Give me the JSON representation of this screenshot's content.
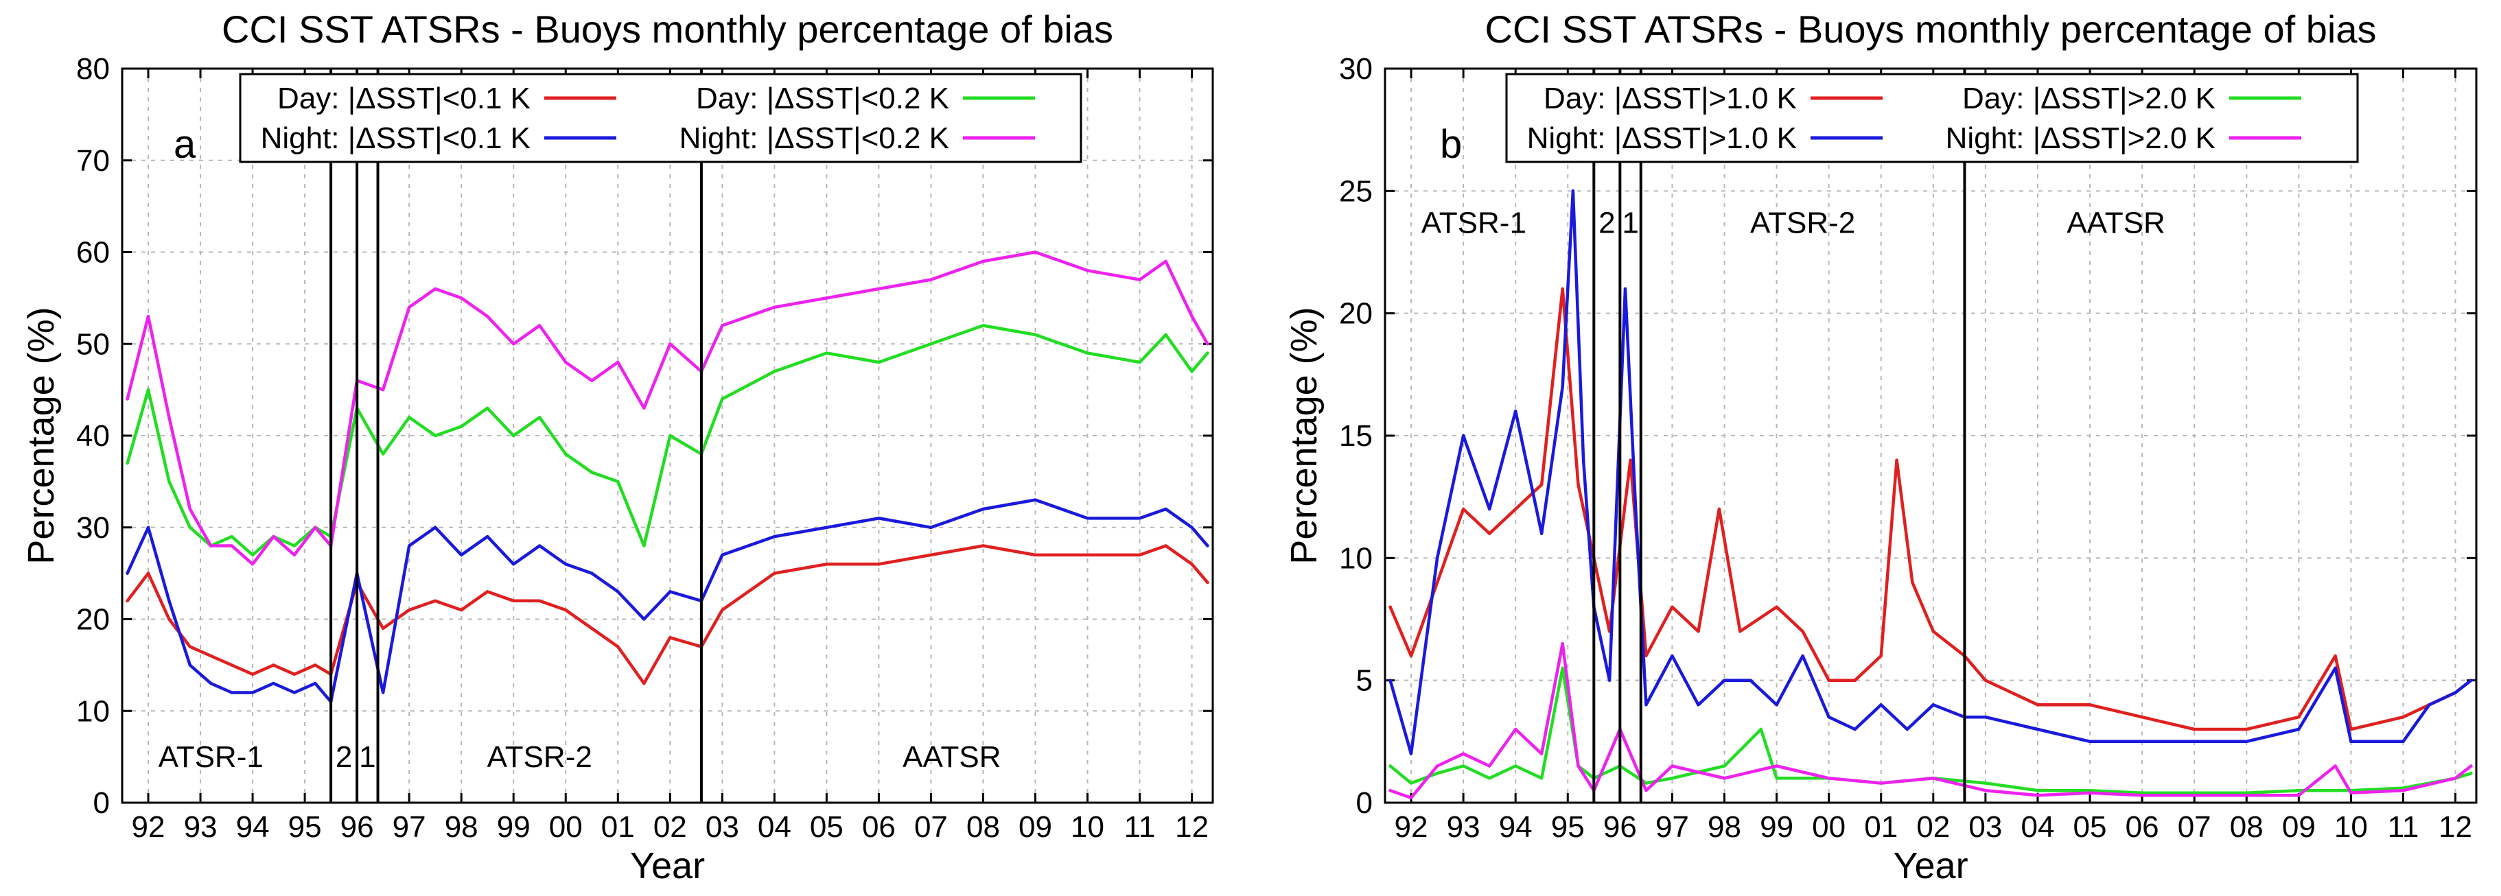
{
  "chart_data": [
    {
      "type": "line",
      "panel_letter": "a",
      "title": "CCI SST ATSRs - Buoys monthly percentage of bias",
      "xlabel": "Year",
      "ylabel": "Percentage (%)",
      "xlim": [
        1991.5,
        2012.4
      ],
      "ylim": [
        0,
        80
      ],
      "yticks": [
        0,
        10,
        20,
        30,
        40,
        50,
        60,
        70,
        80
      ],
      "xtick_positions": [
        1992,
        1993,
        1994,
        1995,
        1996,
        1997,
        1998,
        1999,
        2000,
        2001,
        2002,
        2003,
        2004,
        2005,
        2006,
        2007,
        2008,
        2009,
        2010,
        2011,
        2012
      ],
      "xtick_labels": [
        "92",
        "93",
        "94",
        "95",
        "96",
        "97",
        "98",
        "99",
        "00",
        "01",
        "02",
        "03",
        "04",
        "05",
        "06",
        "07",
        "08",
        "09",
        "10",
        "11",
        "12"
      ],
      "grid": true,
      "legend_position": "top-center",
      "instrument_boundaries": [
        1995.5,
        1996.0,
        1996.4,
        2002.6
      ],
      "instrument_labels": [
        {
          "text": "ATSR-1",
          "x": 1993.2,
          "y": 5
        },
        {
          "text": "2",
          "x": 1995.75,
          "y": 5
        },
        {
          "text": "1",
          "x": 1996.2,
          "y": 5
        },
        {
          "text": "ATSR-2",
          "x": 1999.5,
          "y": 5
        },
        {
          "text": "AATSR",
          "x": 2007.4,
          "y": 5
        }
      ],
      "series": [
        {
          "name": "Day: |ΔSST|<0.1 K",
          "color": "#e02020",
          "x": [
            1991.6,
            1992.0,
            1992.4,
            1992.8,
            1993.2,
            1993.6,
            1994.0,
            1994.4,
            1994.8,
            1995.2,
            1995.5,
            1996.0,
            1996.5,
            1997.0,
            1997.5,
            1998.0,
            1998.5,
            1999.0,
            1999.5,
            2000.0,
            2000.5,
            2001.0,
            2001.5,
            2002.0,
            2002.6,
            2003.0,
            2004.0,
            2005.0,
            2006.0,
            2007.0,
            2008.0,
            2009.0,
            2010.0,
            2011.0,
            2011.5,
            2012.0,
            2012.3
          ],
          "values": [
            22,
            25,
            20,
            17,
            16,
            15,
            14,
            15,
            14,
            15,
            14,
            24,
            19,
            21,
            22,
            21,
            23,
            22,
            22,
            21,
            19,
            17,
            13,
            18,
            17,
            21,
            25,
            26,
            26,
            27,
            28,
            27,
            27,
            27,
            28,
            26,
            24
          ]
        },
        {
          "name": "Day: |ΔSST|<0.2 K",
          "color": "#22dd22",
          "x": [
            1991.6,
            1992.0,
            1992.4,
            1992.8,
            1993.2,
            1993.6,
            1994.0,
            1994.4,
            1994.8,
            1995.2,
            1995.5,
            1996.0,
            1996.5,
            1997.0,
            1997.5,
            1998.0,
            1998.5,
            1999.0,
            1999.5,
            2000.0,
            2000.5,
            2001.0,
            2001.5,
            2002.0,
            2002.6,
            2003.0,
            2004.0,
            2005.0,
            2006.0,
            2007.0,
            2008.0,
            2009.0,
            2010.0,
            2011.0,
            2011.5,
            2012.0,
            2012.3
          ],
          "values": [
            37,
            45,
            35,
            30,
            28,
            29,
            27,
            29,
            28,
            30,
            29,
            43,
            38,
            42,
            40,
            41,
            43,
            40,
            42,
            38,
            36,
            35,
            28,
            40,
            38,
            44,
            47,
            49,
            48,
            50,
            52,
            51,
            49,
            48,
            51,
            47,
            49
          ]
        },
        {
          "name": "Night: |ΔSST|<0.1 K",
          "color": "#1a1adc",
          "x": [
            1991.6,
            1992.0,
            1992.4,
            1992.8,
            1993.2,
            1993.6,
            1994.0,
            1994.4,
            1994.8,
            1995.2,
            1995.5,
            1996.0,
            1996.5,
            1997.0,
            1997.5,
            1998.0,
            1998.5,
            1999.0,
            1999.5,
            2000.0,
            2000.5,
            2001.0,
            2001.5,
            2002.0,
            2002.6,
            2003.0,
            2004.0,
            2005.0,
            2006.0,
            2007.0,
            2008.0,
            2009.0,
            2010.0,
            2011.0,
            2011.5,
            2012.0,
            2012.3
          ],
          "values": [
            25,
            30,
            22,
            15,
            13,
            12,
            12,
            13,
            12,
            13,
            11,
            25,
            12,
            28,
            30,
            27,
            29,
            26,
            28,
            26,
            25,
            23,
            20,
            23,
            22,
            27,
            29,
            30,
            31,
            30,
            32,
            33,
            31,
            31,
            32,
            30,
            28
          ]
        },
        {
          "name": "Night: |ΔSST|<0.2 K",
          "color": "#ee22ee",
          "x": [
            1991.6,
            1992.0,
            1992.4,
            1992.8,
            1993.2,
            1993.6,
            1994.0,
            1994.4,
            1994.8,
            1995.2,
            1995.5,
            1996.0,
            1996.5,
            1997.0,
            1997.5,
            1998.0,
            1998.5,
            1999.0,
            1999.5,
            2000.0,
            2000.5,
            2001.0,
            2001.5,
            2002.0,
            2002.6,
            2003.0,
            2004.0,
            2005.0,
            2006.0,
            2007.0,
            2008.0,
            2009.0,
            2010.0,
            2011.0,
            2011.5,
            2012.0,
            2012.3
          ],
          "values": [
            44,
            53,
            42,
            32,
            28,
            28,
            26,
            29,
            27,
            30,
            28,
            46,
            45,
            54,
            56,
            55,
            53,
            50,
            52,
            48,
            46,
            48,
            43,
            50,
            47,
            52,
            54,
            55,
            56,
            57,
            59,
            60,
            58,
            57,
            59,
            53,
            50
          ]
        }
      ]
    },
    {
      "type": "line",
      "panel_letter": "b",
      "title": "CCI SST ATSRs - Buoys monthly percentage of bias",
      "xlabel": "Year",
      "ylabel": "Percentage (%)",
      "xlim": [
        1991.5,
        2012.4
      ],
      "ylim": [
        0,
        30
      ],
      "yticks": [
        0,
        5,
        10,
        15,
        20,
        25,
        30
      ],
      "xtick_positions": [
        1992,
        1993,
        1994,
        1995,
        1996,
        1997,
        1998,
        1999,
        2000,
        2001,
        2002,
        2003,
        2004,
        2005,
        2006,
        2007,
        2008,
        2009,
        2010,
        2011,
        2012
      ],
      "xtick_labels": [
        "92",
        "93",
        "94",
        "95",
        "96",
        "97",
        "98",
        "99",
        "00",
        "01",
        "02",
        "03",
        "04",
        "05",
        "06",
        "07",
        "08",
        "09",
        "10",
        "11",
        "12"
      ],
      "grid": true,
      "legend_position": "top-center",
      "instrument_boundaries": [
        1995.5,
        1996.0,
        1996.4,
        2002.6
      ],
      "instrument_labels": [
        {
          "text": "ATSR-1",
          "x": 1993.2,
          "y": 23.7
        },
        {
          "text": "2",
          "x": 1995.75,
          "y": 23.7
        },
        {
          "text": "1",
          "x": 1996.2,
          "y": 23.7
        },
        {
          "text": "ATSR-2",
          "x": 1999.5,
          "y": 23.7
        },
        {
          "text": "AATSR",
          "x": 2005.5,
          "y": 23.7
        }
      ],
      "series": [
        {
          "name": "Day: |ΔSST|>1.0 K",
          "color": "#e02020",
          "x": [
            1991.6,
            1992.0,
            1992.5,
            1993.0,
            1993.5,
            1994.0,
            1994.5,
            1994.9,
            1995.2,
            1995.5,
            1995.8,
            1996.2,
            1996.5,
            1997.0,
            1997.5,
            1997.9,
            1998.3,
            1999.0,
            1999.5,
            2000.0,
            2000.5,
            2001.0,
            2001.3,
            2001.6,
            2002.0,
            2002.6,
            2003.0,
            2004.0,
            2005.0,
            2006.0,
            2007.0,
            2008.0,
            2009.0,
            2009.7,
            2010.0,
            2011.0,
            2011.5,
            2012.0,
            2012.3
          ],
          "values": [
            8,
            6,
            9,
            12,
            11,
            12,
            13,
            21,
            13,
            10,
            7,
            14,
            6,
            8,
            7,
            12,
            7,
            8,
            7,
            5,
            5,
            6,
            14,
            9,
            7,
            6,
            5,
            4,
            4,
            3.5,
            3,
            3,
            3.5,
            6,
            3,
            3.5,
            4,
            4.5,
            5
          ]
        },
        {
          "name": "Day: |ΔSST|>2.0 K",
          "color": "#22dd22",
          "x": [
            1991.6,
            1992.0,
            1992.5,
            1993.0,
            1993.5,
            1994.0,
            1994.5,
            1994.9,
            1995.2,
            1995.5,
            1996.0,
            1996.5,
            1997.0,
            1998.0,
            1998.7,
            1999.0,
            2000.0,
            2001.0,
            2002.0,
            2003.0,
            2004.0,
            2005.0,
            2006.0,
            2007.0,
            2008.0,
            2009.0,
            2010.0,
            2011.0,
            2012.0,
            2012.3
          ],
          "values": [
            1.5,
            0.8,
            1.2,
            1.5,
            1.0,
            1.5,
            1.0,
            5.5,
            1.5,
            1.0,
            1.5,
            0.8,
            1.0,
            1.5,
            3,
            1.0,
            1.0,
            0.8,
            1.0,
            0.8,
            0.5,
            0.5,
            0.4,
            0.4,
            0.4,
            0.5,
            0.5,
            0.6,
            1.0,
            1.2
          ]
        },
        {
          "name": "Night: |ΔSST|>1.0 K",
          "color": "#1a1adc",
          "x": [
            1991.6,
            1992.0,
            1992.5,
            1993.0,
            1993.5,
            1994.0,
            1994.5,
            1994.9,
            1995.1,
            1995.3,
            1995.5,
            1995.8,
            1996.1,
            1996.3,
            1996.5,
            1997.0,
            1997.5,
            1998.0,
            1998.5,
            1999.0,
            1999.5,
            2000.0,
            2000.5,
            2001.0,
            2001.5,
            2002.0,
            2002.6,
            2003.0,
            2004.0,
            2005.0,
            2006.0,
            2007.0,
            2008.0,
            2009.0,
            2009.7,
            2010.0,
            2011.0,
            2011.5,
            2012.0,
            2012.3
          ],
          "values": [
            5,
            2,
            10,
            15,
            12,
            16,
            11,
            17,
            25,
            14,
            8,
            5,
            21,
            12,
            4,
            6,
            4,
            5,
            5,
            4,
            6,
            3.5,
            3,
            4,
            3,
            4,
            3.5,
            3.5,
            3,
            2.5,
            2.5,
            2.5,
            2.5,
            3,
            5.5,
            2.5,
            2.5,
            4,
            4.5,
            5
          ]
        },
        {
          "name": "Night: |ΔSST|>2.0 K",
          "color": "#ee22ee",
          "x": [
            1991.6,
            1992.0,
            1992.5,
            1993.0,
            1993.5,
            1994.0,
            1994.5,
            1994.9,
            1995.2,
            1995.5,
            1996.0,
            1996.5,
            1997.0,
            1998.0,
            1999.0,
            2000.0,
            2001.0,
            2002.0,
            2003.0,
            2004.0,
            2005.0,
            2006.0,
            2007.0,
            2008.0,
            2009.0,
            2009.7,
            2010.0,
            2011.0,
            2012.0,
            2012.3
          ],
          "values": [
            0.5,
            0.2,
            1.5,
            2,
            1.5,
            3,
            2,
            6.5,
            1.5,
            0.5,
            3,
            0.5,
            1.5,
            1.0,
            1.5,
            1.0,
            0.8,
            1.0,
            0.5,
            0.3,
            0.4,
            0.3,
            0.3,
            0.3,
            0.3,
            1.5,
            0.4,
            0.5,
            1.0,
            1.5
          ]
        }
      ]
    }
  ]
}
